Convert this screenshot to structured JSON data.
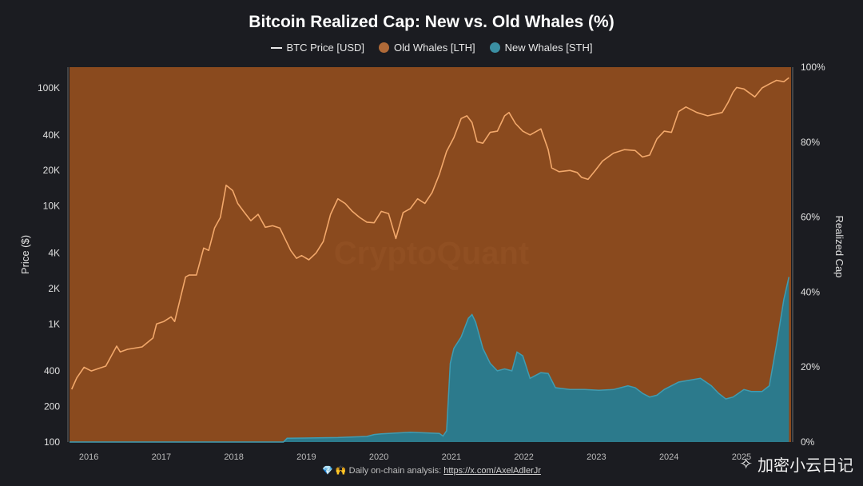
{
  "chart_data": {
    "type": "area",
    "title": "Bitcoin Realized Cap: New vs. Old Whales (%)",
    "legend": [
      {
        "label": "BTC Price [USD]",
        "kind": "line",
        "color": "#f2a86b"
      },
      {
        "label": "Old Whales [LTH]",
        "kind": "dot",
        "color": "#8a4a1e"
      },
      {
        "label": "New Whales [STH]",
        "kind": "dot",
        "color": "#2c7a8c"
      }
    ],
    "ylabel_left": "Price ($)",
    "ylabel_right": "Realized Cap",
    "y_left_scale": "log",
    "y_left_range": [
      100,
      150000
    ],
    "y_left_ticks": [
      "100",
      "200",
      "400",
      "1K",
      "2K",
      "4K",
      "10K",
      "20K",
      "40K",
      "100K"
    ],
    "y_left_tick_values": [
      100,
      200,
      400,
      1000,
      2000,
      4000,
      10000,
      20000,
      40000,
      100000
    ],
    "y_right_range": [
      0,
      100
    ],
    "y_right_ticks": [
      "0%",
      "20%",
      "40%",
      "60%",
      "80%",
      "100%"
    ],
    "y_right_tick_values": [
      0,
      20,
      40,
      60,
      80,
      100
    ],
    "x_range": [
      2015.8,
      2025.75
    ],
    "x_ticks": [
      "2016",
      "2017",
      "2018",
      "2019",
      "2020",
      "2021",
      "2022",
      "2023",
      "2024",
      "2025"
    ],
    "x_tick_values": [
      2016,
      2017,
      2018,
      2019,
      2020,
      2021,
      2022,
      2023,
      2024,
      2025
    ],
    "series": [
      {
        "name": "BTC Price [USD]",
        "x": [
          2015.83,
          2015.9,
          2016.0,
          2016.1,
          2016.2,
          2016.3,
          2016.45,
          2016.5,
          2016.6,
          2016.8,
          2016.95,
          2017.0,
          2017.1,
          2017.2,
          2017.25,
          2017.4,
          2017.45,
          2017.55,
          2017.65,
          2017.72,
          2017.8,
          2017.88,
          2017.96,
          2018.05,
          2018.12,
          2018.2,
          2018.3,
          2018.4,
          2018.5,
          2018.6,
          2018.7,
          2018.85,
          2018.93,
          2019.0,
          2019.1,
          2019.2,
          2019.3,
          2019.4,
          2019.5,
          2019.6,
          2019.7,
          2019.8,
          2019.9,
          2020.0,
          2020.1,
          2020.2,
          2020.3,
          2020.4,
          2020.5,
          2020.6,
          2020.7,
          2020.8,
          2020.9,
          2021.0,
          2021.1,
          2021.2,
          2021.28,
          2021.35,
          2021.42,
          2021.5,
          2021.6,
          2021.7,
          2021.8,
          2021.86,
          2021.95,
          2022.05,
          2022.15,
          2022.3,
          2022.4,
          2022.45,
          2022.55,
          2022.7,
          2022.8,
          2022.86,
          2022.95,
          2023.05,
          2023.15,
          2023.3,
          2023.45,
          2023.6,
          2023.7,
          2023.8,
          2023.9,
          2024.0,
          2024.1,
          2024.2,
          2024.3,
          2024.45,
          2024.6,
          2024.7,
          2024.8,
          2024.88,
          2024.95,
          2025.0,
          2025.1,
          2025.25,
          2025.35,
          2025.45,
          2025.55,
          2025.65,
          2025.72
        ],
        "values": [
          280,
          350,
          430,
          400,
          420,
          440,
          650,
          580,
          610,
          640,
          760,
          1000,
          1050,
          1150,
          1050,
          2500,
          2600,
          2600,
          4400,
          4200,
          6500,
          8000,
          15000,
          13500,
          10500,
          9000,
          7500,
          8500,
          6600,
          6800,
          6500,
          4200,
          3600,
          3800,
          3500,
          4000,
          5000,
          8500,
          11500,
          10500,
          9000,
          8000,
          7300,
          7200,
          9000,
          8600,
          5300,
          8800,
          9500,
          11500,
          10500,
          13000,
          18500,
          29000,
          38000,
          55000,
          58000,
          51000,
          35000,
          34000,
          42000,
          43000,
          58000,
          62000,
          50000,
          43000,
          40000,
          45000,
          30000,
          21000,
          19500,
          20000,
          19200,
          17500,
          16800,
          20000,
          24000,
          28000,
          30000,
          29500,
          26000,
          27000,
          37000,
          43000,
          42000,
          63000,
          69000,
          62000,
          58000,
          60000,
          62000,
          75000,
          92000,
          101000,
          98000,
          84000,
          100000,
          108000,
          116000,
          113000,
          122000
        ]
      },
      {
        "name": "New Whales [STH]",
        "x": [
          2015.8,
          2018.75,
          2018.8,
          2019.5,
          2019.9,
          2020.0,
          2020.1,
          2020.5,
          2020.9,
          2020.95,
          2021.0,
          2021.05,
          2021.1,
          2021.2,
          2021.3,
          2021.35,
          2021.4,
          2021.5,
          2021.6,
          2021.7,
          2021.8,
          2021.9,
          2021.97,
          2022.05,
          2022.15,
          2022.3,
          2022.4,
          2022.5,
          2022.7,
          2022.9,
          2023.1,
          2023.3,
          2023.5,
          2023.6,
          2023.7,
          2023.8,
          2023.9,
          2024.0,
          2024.1,
          2024.2,
          2024.35,
          2024.5,
          2024.65,
          2024.75,
          2024.85,
          2024.95,
          2025.1,
          2025.2,
          2025.35,
          2025.45,
          2025.55,
          2025.65,
          2025.72
        ],
        "values": [
          0,
          0,
          1,
          1.2,
          1.5,
          2,
          2.2,
          2.6,
          2.3,
          1.6,
          3,
          21,
          25,
          28,
          33,
          34,
          32,
          25,
          21,
          19,
          19.5,
          19,
          24,
          23,
          17,
          18.5,
          18.3,
          14.5,
          14,
          14,
          13.8,
          14,
          15,
          14.5,
          13,
          12,
          12.5,
          14,
          15,
          16,
          16.5,
          17,
          15,
          13,
          11.5,
          12,
          14,
          13.5,
          13.5,
          15,
          26,
          38,
          44
        ]
      }
    ],
    "annotation_footer": "Daily on-chain analysis:",
    "annotation_link": "https://x.com/AxelAdlerJr",
    "brand_text": "加密小云日记"
  }
}
